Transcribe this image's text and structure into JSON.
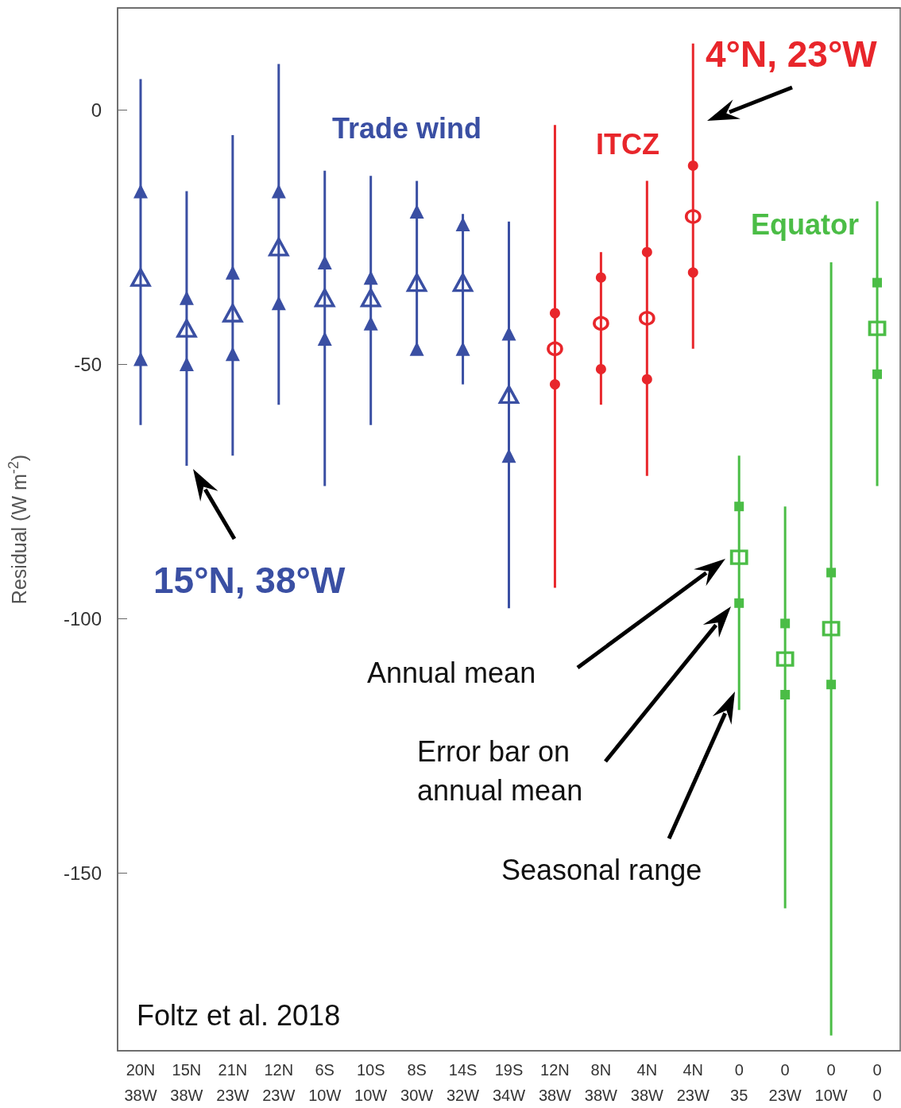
{
  "chart_data": {
    "type": "scatter",
    "ylabel": "Residual (W m$^{-2}$)",
    "categories": [
      "20N\n38W",
      "15N\n38W",
      "21N\n23W",
      "12N\n23W",
      "6S\n10W",
      "10S\n10W",
      "8S\n30W",
      "14S\n32W",
      "19S\n34W",
      "12N\n38W",
      "8N\n38W",
      "4N\n38W",
      "4N\n23W",
      "0\n35",
      "0\n23W",
      "0\n10W",
      "0\n0"
    ],
    "ylim": [
      -185,
      20
    ],
    "yticks": [
      -150,
      -100,
      -50,
      0
    ],
    "grid": false,
    "legend": false,
    "series": [
      {
        "type": "bar",
        "color": "#3a4fa3",
        "base": [
          -62,
          -70,
          -68,
          -58,
          -74,
          -62,
          -47,
          -54,
          -98,
          null,
          null,
          null,
          null,
          null,
          null,
          null,
          null
        ],
        "values": [
          68,
          54,
          63,
          67,
          62,
          49,
          33,
          33.5,
          76,
          null,
          null,
          null,
          null,
          null,
          null,
          null,
          null
        ]
      },
      {
        "type": "bar",
        "color": "#e8262b",
        "base": [
          null,
          null,
          null,
          null,
          null,
          null,
          null,
          null,
          null,
          -94,
          -58,
          -72,
          -47,
          null,
          null,
          null,
          null
        ],
        "values": [
          null,
          null,
          null,
          null,
          null,
          null,
          null,
          null,
          null,
          91,
          30,
          58,
          60,
          null,
          null,
          null,
          null
        ]
      },
      {
        "type": "bar",
        "color": "#4bbd46",
        "base": [
          null,
          null,
          null,
          null,
          null,
          null,
          null,
          null,
          null,
          null,
          null,
          null,
          null,
          -118,
          -157,
          -182,
          -74
        ],
        "values": [
          null,
          null,
          null,
          null,
          null,
          null,
          null,
          null,
          null,
          null,
          null,
          null,
          null,
          50,
          79,
          152,
          56
        ]
      },
      {
        "color": "#3a4fa3",
        "marker": "triangle",
        "values": [
          -49,
          -50,
          -48,
          -38,
          -45,
          -42,
          -47,
          -47,
          -68,
          null,
          null,
          null,
          null,
          null,
          null,
          null,
          null
        ]
      },
      {
        "color": "#3a4fa3",
        "marker": "triangle",
        "values": [
          -16,
          -37,
          -32,
          -16,
          -30,
          -33,
          -20,
          -22.5,
          -44,
          null,
          null,
          null,
          null,
          null,
          null,
          null,
          null
        ]
      },
      {
        "color": "#e8262b",
        "marker": "circle",
        "values": [
          null,
          null,
          null,
          null,
          null,
          null,
          null,
          null,
          null,
          -54,
          -51,
          -53,
          -32,
          null,
          null,
          null,
          null
        ]
      },
      {
        "color": "#e8262b",
        "marker": "circle",
        "values": [
          null,
          null,
          null,
          null,
          null,
          null,
          null,
          null,
          null,
          -40,
          -33,
          -28,
          -11,
          null,
          null,
          null,
          null
        ]
      },
      {
        "color": "#4bbd46",
        "marker": "square",
        "values": [
          null,
          null,
          null,
          null,
          null,
          null,
          null,
          null,
          null,
          null,
          null,
          null,
          null,
          -97,
          -115,
          -113,
          -52
        ]
      },
      {
        "color": "#4bbd46",
        "marker": "square",
        "values": [
          null,
          null,
          null,
          null,
          null,
          null,
          null,
          null,
          null,
          null,
          null,
          null,
          null,
          -78,
          -101,
          -91,
          -34
        ]
      },
      {
        "name": "Trade wind",
        "color": "#3a4fa3",
        "marker": "triangle",
        "values": [
          -33,
          -43,
          -40,
          -27,
          -37,
          -37,
          -34,
          -34,
          -56,
          null,
          null,
          null,
          null,
          null,
          null,
          null,
          null
        ]
      },
      {
        "name": "ITCZ",
        "color": "#e8262b",
        "marker": "circle",
        "values": [
          null,
          null,
          null,
          null,
          null,
          null,
          null,
          null,
          null,
          -47,
          -42,
          -41,
          -21,
          null,
          null,
          null,
          null
        ]
      },
      {
        "name": "Equator",
        "color": "#4bbd46",
        "marker": "square",
        "values": [
          null,
          null,
          null,
          null,
          null,
          null,
          null,
          null,
          null,
          null,
          null,
          null,
          null,
          -88,
          -108,
          -102,
          -43
        ]
      }
    ],
    "annotations": [
      "15°N, 38°W",
      "4°N, 23°W",
      "Annual mean",
      "Error bar on\nannual mean",
      "Seasonal range",
      "Foltz et al. 2018"
    ]
  }
}
